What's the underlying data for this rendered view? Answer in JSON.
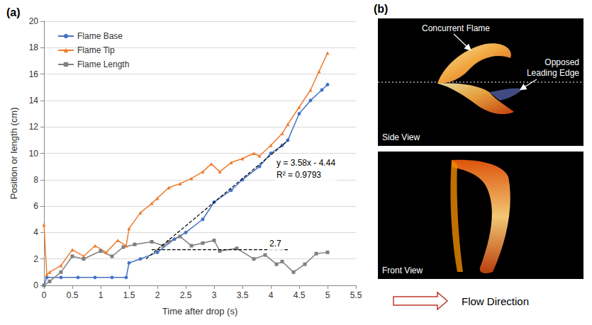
{
  "chart_data": {
    "type": "line",
    "panel_label": "(a)",
    "x_label": "Time after drop (s)",
    "y_label": "Position or length (cm)",
    "xlim": [
      0,
      5.5
    ],
    "xticks": [
      0,
      0.5,
      1,
      1.5,
      2,
      2.5,
      3,
      3.5,
      4,
      4.5,
      5,
      5.5
    ],
    "ylim": [
      0,
      20
    ],
    "yticks": [
      0,
      2,
      4,
      6,
      8,
      10,
      12,
      14,
      16,
      18,
      20
    ],
    "grid": true,
    "legend": "top-left",
    "series": [
      {
        "name": "Flame Base",
        "color": "#4472c4",
        "marker": "circle",
        "x": [
          0,
          0.05,
          0.3,
          0.6,
          0.9,
          1.2,
          1.45,
          1.5,
          1.7,
          2.0,
          2.3,
          2.5,
          2.8,
          3.0,
          3.3,
          3.5,
          3.8,
          4.0,
          4.2,
          4.3,
          4.5,
          4.7,
          4.9,
          5.0
        ],
        "values": [
          0,
          0.6,
          0.6,
          0.6,
          0.6,
          0.6,
          0.6,
          1.7,
          2.0,
          2.5,
          3.5,
          4.0,
          5.0,
          6.3,
          7.2,
          8.0,
          9.0,
          10.0,
          10.6,
          11.0,
          13.0,
          14.0,
          14.8,
          15.2
        ]
      },
      {
        "name": "Flame Tip",
        "color": "#ed7d31",
        "marker": "triangle",
        "x": [
          0,
          0.05,
          0.1,
          0.3,
          0.5,
          0.7,
          0.9,
          1.1,
          1.3,
          1.45,
          1.5,
          1.7,
          1.9,
          2.0,
          2.2,
          2.4,
          2.6,
          2.8,
          2.95,
          3.1,
          3.3,
          3.5,
          3.7,
          3.8,
          4.0,
          4.2,
          4.3,
          4.5,
          4.7,
          4.85,
          5.0
        ],
        "values": [
          4.6,
          0.8,
          1.0,
          1.5,
          2.7,
          2.2,
          3.0,
          2.5,
          3.4,
          3.0,
          4.3,
          5.5,
          6.2,
          6.6,
          7.4,
          7.7,
          8.1,
          8.6,
          9.2,
          8.6,
          9.3,
          9.6,
          10.0,
          9.8,
          10.6,
          11.5,
          12.2,
          13.5,
          14.8,
          16.2,
          17.6
        ]
      },
      {
        "name": "Flame Length",
        "color": "#808080",
        "marker": "square",
        "x": [
          0,
          0.1,
          0.3,
          0.5,
          0.7,
          1.0,
          1.2,
          1.4,
          1.6,
          1.9,
          2.1,
          2.2,
          2.4,
          2.6,
          2.8,
          3.0,
          3.1,
          3.4,
          3.7,
          3.9,
          4.1,
          4.2,
          4.4,
          4.6,
          4.8,
          5.0
        ],
        "values": [
          0,
          0.3,
          1.0,
          2.2,
          2.0,
          2.6,
          2.2,
          2.9,
          3.1,
          3.3,
          3.0,
          3.3,
          3.7,
          3.0,
          3.2,
          3.4,
          2.6,
          2.8,
          2.0,
          2.3,
          1.6,
          1.8,
          1.0,
          1.6,
          2.4,
          2.5
        ]
      }
    ],
    "trendlines": [
      {
        "x": [
          1.8,
          4.3
        ],
        "values": [
          2.0,
          10.95
        ],
        "color": "#000000",
        "line_style": "dashed",
        "labels": [
          "y = 3.58x - 4.44",
          "R² = 0.9793"
        ]
      },
      {
        "x": [
          1.9,
          4.3
        ],
        "values": [
          2.7,
          2.7
        ],
        "color": "#000000",
        "line_style": "dashed",
        "labels": [
          "2.7"
        ]
      }
    ]
  },
  "panel_b": {
    "label": "(b)",
    "views": [
      {
        "title": "Side View",
        "callouts": [
          "Concurrent Flame",
          "Opposed Leading Edge"
        ]
      },
      {
        "title": "Front View",
        "callouts": []
      }
    ],
    "flow_label": "Flow Direction"
  }
}
